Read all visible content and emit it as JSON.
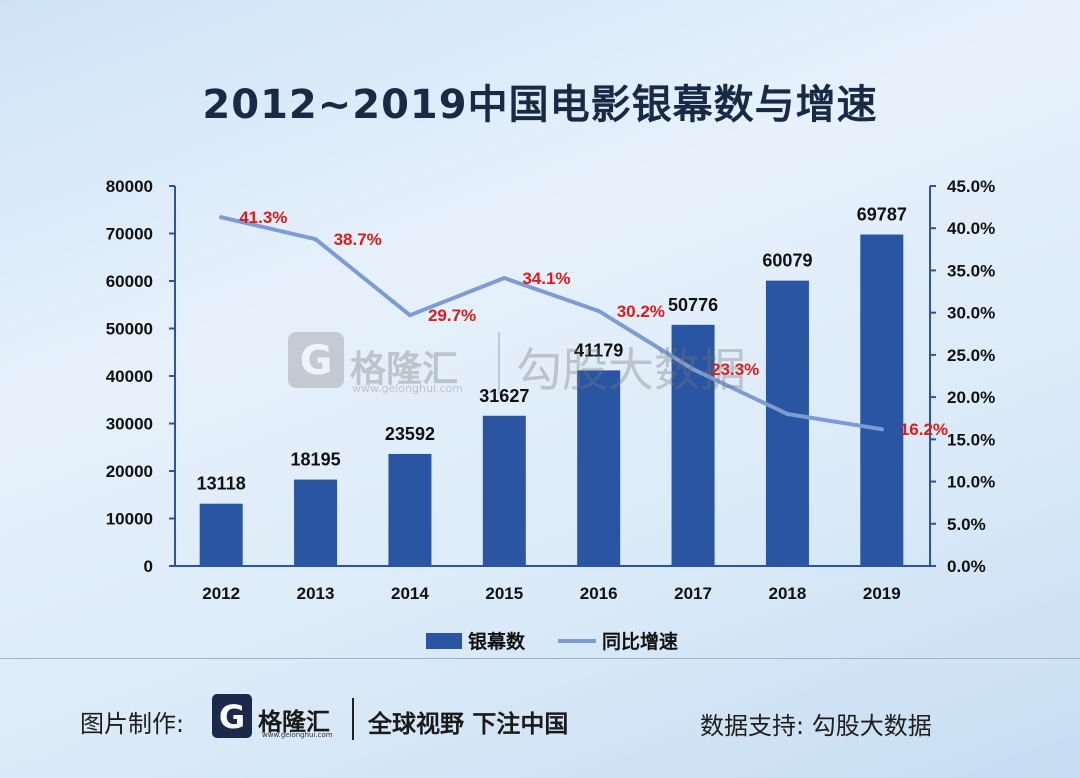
{
  "title": "2012~2019中国电影银幕数与增速",
  "chart_data": {
    "type": "bar+line",
    "categories": [
      "2012",
      "2013",
      "2014",
      "2015",
      "2016",
      "2017",
      "2018",
      "2019"
    ],
    "series": [
      {
        "name": "银幕数",
        "type": "bar",
        "axis": "left",
        "values": [
          13118,
          18195,
          23592,
          31627,
          41179,
          50776,
          60079,
          69787
        ],
        "labels": [
          "13118",
          "18195",
          "23592",
          "31627",
          "41179",
          "50776",
          "60079",
          "69787"
        ],
        "color": "#2a55a3"
      },
      {
        "name": "同比增速",
        "type": "line",
        "axis": "right",
        "values": [
          41.3,
          38.7,
          29.7,
          34.1,
          30.2,
          23.3,
          18.0,
          16.2
        ],
        "labels": [
          "41.3%",
          "38.7%",
          "29.7%",
          "34.1%",
          "30.2%",
          "23.3%",
          "",
          "16.2%"
        ],
        "color": "#7f9bd4"
      }
    ],
    "y_left": {
      "min": 0,
      "max": 80000,
      "ticks": [
        "0",
        "10000",
        "20000",
        "30000",
        "40000",
        "50000",
        "60000",
        "70000",
        "80000"
      ]
    },
    "y_right": {
      "min": 0,
      "max": 45,
      "ticks": [
        "0.0%",
        "5.0%",
        "10.0%",
        "15.0%",
        "20.0%",
        "25.0%",
        "30.0%",
        "35.0%",
        "40.0%",
        "45.0%"
      ]
    },
    "label_color": "#e31818",
    "legend": "bottom-center"
  },
  "watermark": {
    "brand": "格隆汇",
    "url": "www.gelonghui.com",
    "text2": "勾股大数据"
  },
  "footer": {
    "made_by": "图片制作:",
    "brand": "格隆汇",
    "url": "www.gelonghui.com",
    "slogan": "全球视野 下注中国",
    "support": "数据支持: 勾股大数据"
  }
}
